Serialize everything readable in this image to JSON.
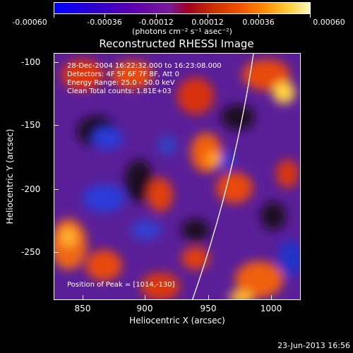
{
  "colorbar": {
    "ticks": [
      "-0.00060",
      "-0.00036",
      "-0.00012",
      "0.00012",
      "0.00036",
      "0.00060"
    ],
    "units": "(photons cm⁻² s⁻¹ asec⁻²)"
  },
  "title": "Reconstructed RHESSI Image",
  "annotations": {
    "line1": "28-Dec-2004 16:22:32.000 to 16:23:08.000",
    "line2": "Detectors: 4F 5F 6F 7F 8F, Att 0",
    "line3": "Energy Range: 25.0 - 50.0 keV",
    "line4": "Clean     Total counts: 1.81E+03",
    "peak": "Position of Peak = [1014,-130]"
  },
  "axes": {
    "xlabel": "Heliocentric X (arcsec)",
    "ylabel": "Heliocentric Y (arcsec)",
    "xticks": [
      "850",
      "900",
      "950",
      "1000"
    ],
    "yticks": [
      "-100",
      "-150",
      "-200",
      "-250"
    ]
  },
  "footer": "23-Jun-2013 16:56",
  "colors": {
    "negative": "#2030d0",
    "mid": "#6a2aa0",
    "positive": "#e84a10",
    "peak": "#ffe070"
  }
}
